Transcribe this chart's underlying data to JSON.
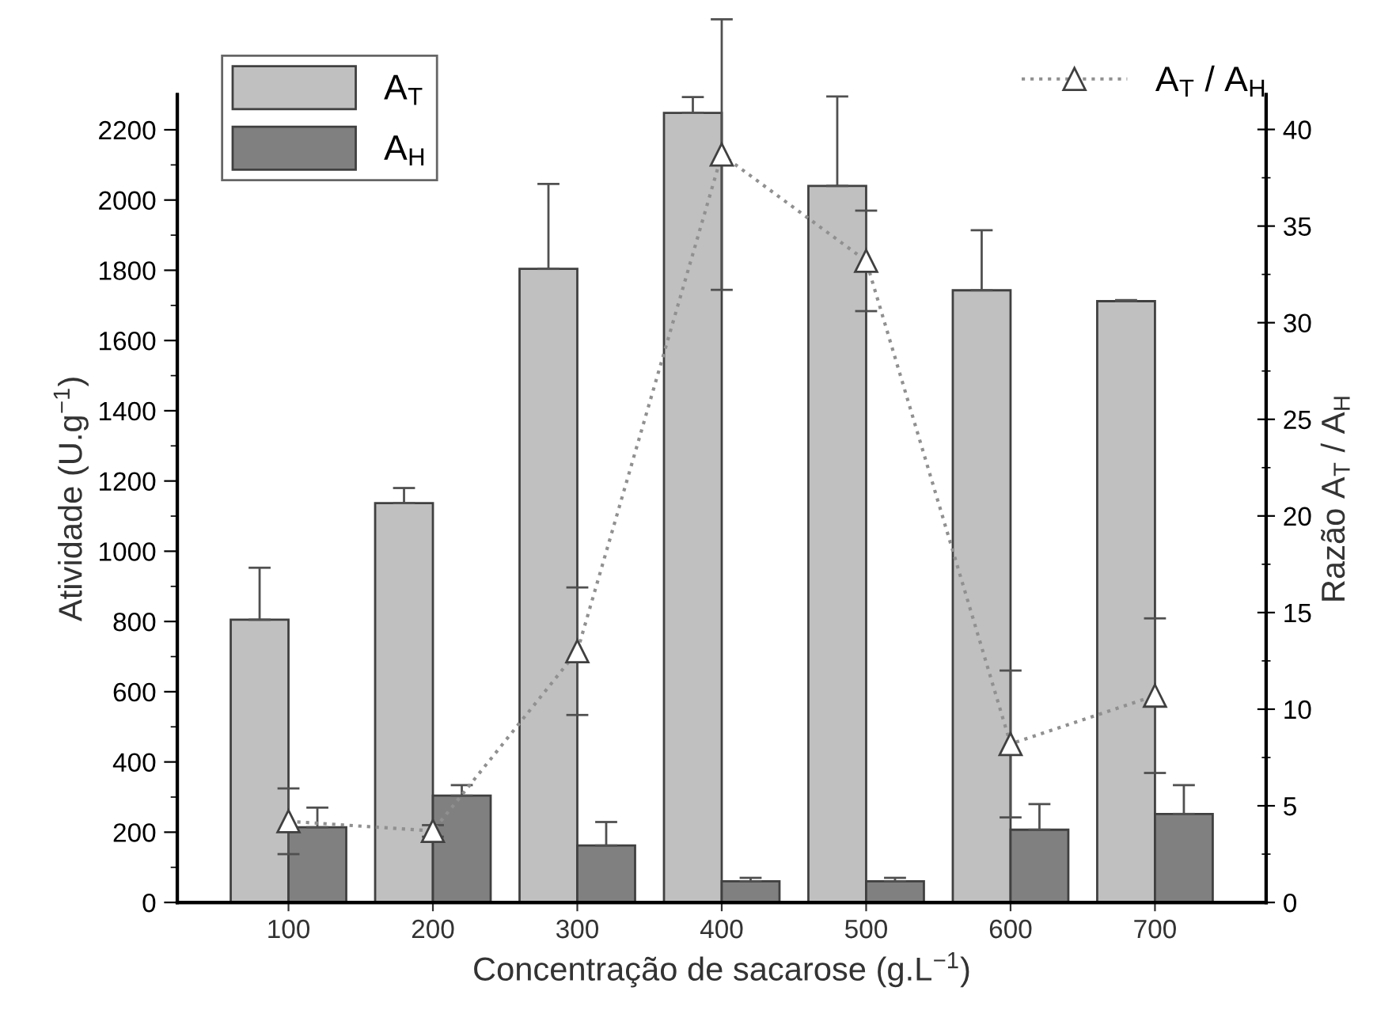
{
  "chart_data": {
    "type": "bar",
    "xlabel": "Concentração de sacarose (g.L$^{−1}$)",
    "ylabel": "Atividade (U.g$^{−1}$)",
    "y2label": "Razão A$_{T}$ / A$_{H}$",
    "categories": [
      "100",
      "200",
      "300",
      "400",
      "500",
      "600",
      "700"
    ],
    "series": [
      {
        "name": "A$_{T}$",
        "color": "#c0c0c0",
        "values": [
          805,
          1137,
          1804,
          2248,
          2040,
          1743,
          1712
        ],
        "errors": [
          148,
          43,
          242,
          45,
          255,
          171,
          3
        ]
      },
      {
        "name": "A$_{H}$",
        "color": "#808080",
        "values": [
          214,
          304,
          162,
          60,
          60,
          207,
          252
        ],
        "errors": [
          56,
          30,
          67,
          10,
          10,
          73,
          82
        ]
      },
      {
        "name": "A$_{T}$ / A$_{H}$",
        "type": "line",
        "axis": "y2",
        "color": "#909090",
        "marker": "triangle",
        "line_style": "dotted",
        "values": [
          4.2,
          3.7,
          13.0,
          38.7,
          33.2,
          8.2,
          10.7
        ],
        "errors": [
          1.7,
          0.3,
          3.3,
          7.0,
          2.6,
          3.8,
          4.0
        ]
      }
    ],
    "ylim": [
      0,
      2300
    ],
    "yticks": [
      0,
      200,
      400,
      600,
      800,
      1000,
      1200,
      1400,
      1600,
      1800,
      2000,
      2200
    ],
    "y2lim": [
      0,
      41.8
    ],
    "y2ticks": [
      0,
      5,
      10,
      15,
      20,
      25,
      30,
      35,
      40
    ],
    "grid": false,
    "legend": "top"
  }
}
